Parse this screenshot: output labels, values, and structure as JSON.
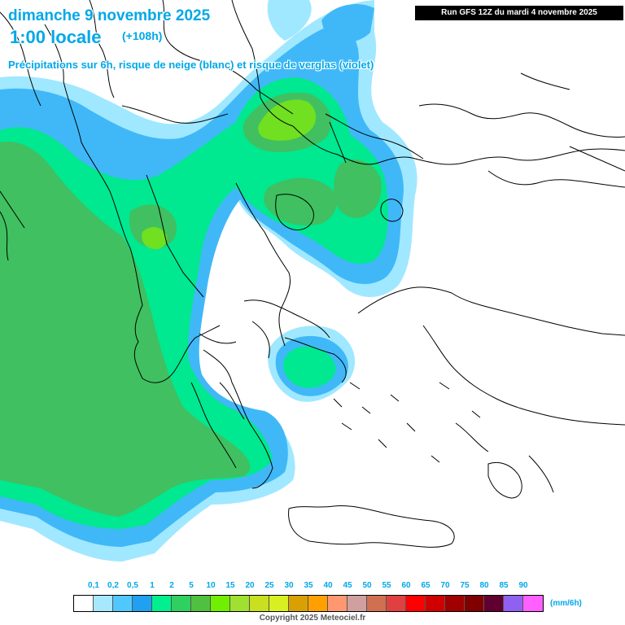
{
  "header": {
    "date_line": "dimanche 9 novembre 2025",
    "local_time": "1:00 locale",
    "offset": "(+108h)",
    "subtitle": "Précipitations sur 6h, risque de neige (blanc) et risque de verglas (violet)",
    "run": "Run GFS 12Z du mardi 4 novembre 2025"
  },
  "legend": {
    "labels": [
      "0,1",
      "0,2",
      "0,5",
      "1",
      "2",
      "5",
      "10",
      "15",
      "20",
      "25",
      "30",
      "35",
      "40",
      "45",
      "50",
      "55",
      "60",
      "65",
      "70",
      "75",
      "80",
      "85",
      "90"
    ],
    "colors": [
      "#ffffff",
      "#a8e8ff",
      "#50c8ff",
      "#20a0f0",
      "#00f090",
      "#30d060",
      "#50c040",
      "#70f000",
      "#a0e030",
      "#c8e020",
      "#d8f020",
      "#d8a000",
      "#ffa000",
      "#ff9870",
      "#d0a0a0",
      "#d07050",
      "#e04040",
      "#ff0000",
      "#d00000",
      "#a00000",
      "#800000",
      "#600030",
      "#9060f0",
      "#ff60ff"
    ],
    "unit": "(mm/6h)"
  },
  "colors": {
    "title": "#00a8e8",
    "precip_light_blue": "#a0e8ff",
    "precip_blue": "#40b8f8",
    "precip_green": "#00e890",
    "precip_dark_green": "#40c060",
    "precip_lime": "#70e020"
  },
  "footer": {
    "copyright": "Copyright 2025 Meteociel.fr"
  }
}
